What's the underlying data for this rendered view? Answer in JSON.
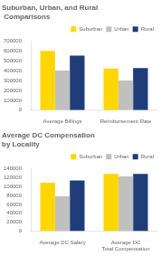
{
  "chart_data": [
    {
      "type": "bar",
      "title": "Suburban, Urban, and Rural\n Comparisons",
      "categories": [
        "Average Billings",
        "Reimbursement Rate"
      ],
      "series": [
        {
          "name": "Suburban",
          "color": "#FFD700",
          "values": [
            600000,
            420000
          ]
        },
        {
          "name": "Urban",
          "color": "#C0C0C0",
          "values": [
            400000,
            300000
          ]
        },
        {
          "name": "Rural",
          "color": "#1F3D7A",
          "values": [
            550000,
            425000
          ]
        }
      ],
      "ylim": [
        0,
        700000
      ],
      "yticks": [
        0,
        100000,
        200000,
        300000,
        400000,
        500000,
        600000,
        700000
      ],
      "grid": false,
      "legend": "upper right"
    },
    {
      "type": "bar",
      "title": "Average DC Compensation\nby Locality",
      "categories": [
        "Average DC Salary",
        "Average DC\nTotal Compensation"
      ],
      "series": [
        {
          "name": "Suburban",
          "color": "#FFD700",
          "values": [
            108000,
            128000
          ]
        },
        {
          "name": "Urban",
          "color": "#C0C0C0",
          "values": [
            78000,
            122000
          ]
        },
        {
          "name": "Rural",
          "color": "#1F3D7A",
          "values": [
            113000,
            128000
          ]
        }
      ],
      "ylim": [
        0,
        140000
      ],
      "yticks": [
        0,
        20000,
        40000,
        60000,
        80000,
        100000,
        120000,
        140000
      ],
      "grid": false,
      "legend": "upper right"
    }
  ]
}
